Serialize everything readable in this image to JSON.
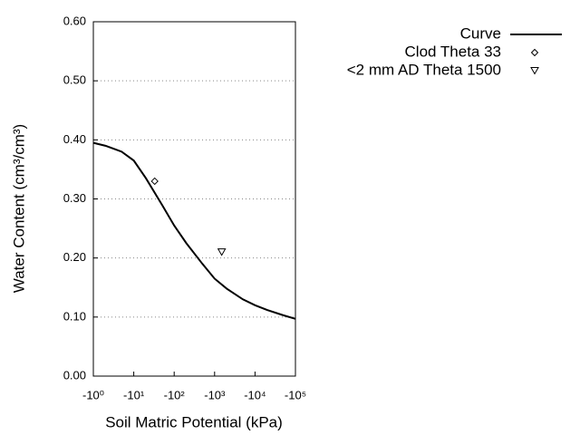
{
  "chart_data": {
    "type": "line",
    "xlabel": "Soil Matric Potential (kPa)",
    "ylabel": "Water Content (cm³/cm³)",
    "xscale": "log",
    "xlim": [
      -1,
      -100000
    ],
    "xticks": [
      {
        "value": -1,
        "label": "-10⁰"
      },
      {
        "value": -10,
        "label": "-10¹"
      },
      {
        "value": -100,
        "label": "-10²"
      },
      {
        "value": -1000,
        "label": "-10³"
      },
      {
        "value": -10000,
        "label": "-10⁴"
      },
      {
        "value": -100000,
        "label": "-10⁵"
      }
    ],
    "ylim": [
      0,
      0.6
    ],
    "yticks": [
      {
        "value": 0,
        "label": "0.00"
      },
      {
        "value": 0.1,
        "label": "0.10"
      },
      {
        "value": 0.2,
        "label": "0.20"
      },
      {
        "value": 0.3,
        "label": "0.30"
      },
      {
        "value": 0.4,
        "label": "0.40"
      },
      {
        "value": 0.5,
        "label": "0.50"
      },
      {
        "value": 0.6,
        "label": "0.60"
      }
    ],
    "grid": true,
    "legend": "outside-right",
    "series": [
      {
        "name": "Curve",
        "color": "#000000",
        "style": "line",
        "x": [
          -1,
          -2,
          -5,
          -10,
          -20,
          -50,
          -100,
          -200,
          -500,
          -1000,
          -2000,
          -5000,
          -10000,
          -20000,
          -50000,
          -100000
        ],
        "values": [
          0.395,
          0.39,
          0.38,
          0.365,
          0.335,
          0.29,
          0.255,
          0.225,
          0.19,
          0.165,
          0.148,
          0.13,
          0.12,
          0.112,
          0.103,
          0.097
        ]
      },
      {
        "name": "Clod Theta 33",
        "color": "#000000",
        "style": "diamond",
        "x": [
          -33
        ],
        "values": [
          0.33
        ]
      },
      {
        "name": "<2 mm AD Theta 1500",
        "color": "#000000",
        "style": "triangle-down",
        "x": [
          -1500
        ],
        "values": [
          0.21
        ]
      }
    ]
  }
}
